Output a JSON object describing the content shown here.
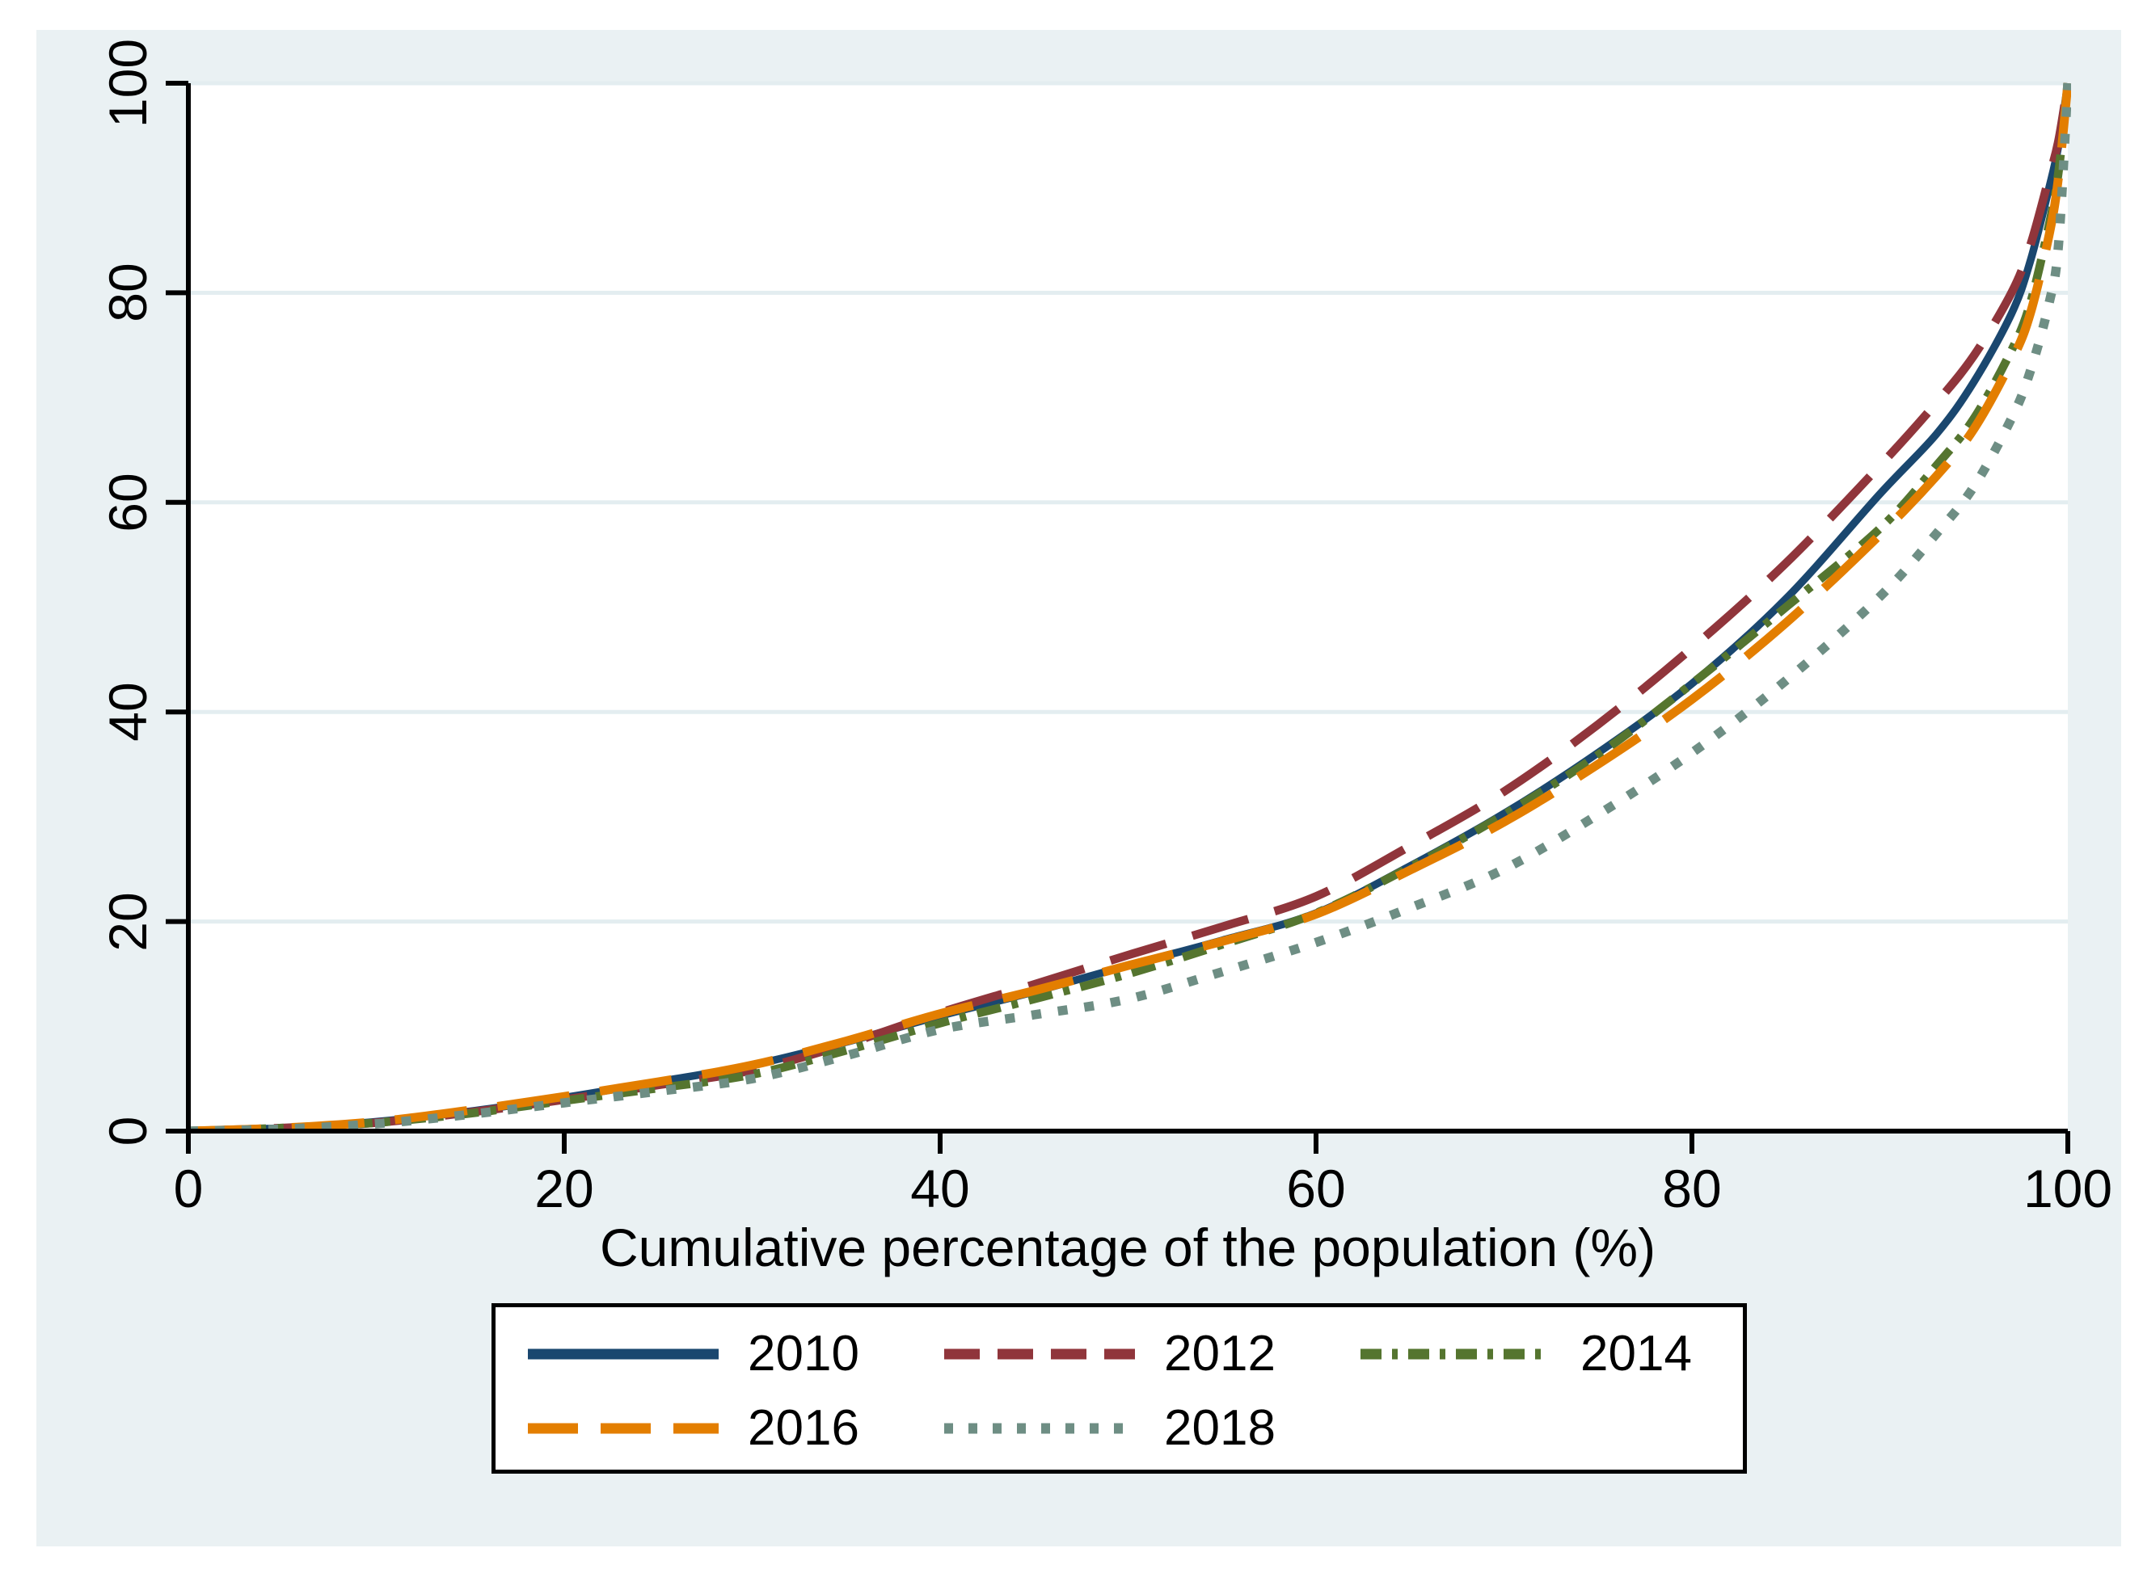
{
  "figure": {
    "canvas_color": "#eaf1f3",
    "plot_background": "#ffffff",
    "axis_color": "#000000"
  },
  "chart_data": {
    "type": "line",
    "title": "",
    "xlabel": "Cumulative percentage of the population (%)",
    "ylabel": "",
    "xlim": [
      0,
      100
    ],
    "ylim": [
      0,
      100
    ],
    "x_ticks": [
      0,
      20,
      40,
      60,
      80,
      100
    ],
    "y_ticks": [
      0,
      20,
      40,
      60,
      80,
      100
    ],
    "grid": "horizontal-only",
    "gridline_color": "#e3edf0",
    "legend_position": "below-plot",
    "x": [
      0,
      5,
      10,
      15,
      20,
      25,
      30,
      35,
      40,
      45,
      50,
      55,
      60,
      65,
      70,
      75,
      80,
      85,
      90,
      93,
      95,
      97,
      98,
      99,
      99.5,
      100
    ],
    "series": [
      {
        "name": "2010",
        "color": "#1a476f",
        "dash": "solid",
        "values": [
          0,
          0.3,
          0.9,
          1.9,
          3.2,
          4.7,
          6.3,
          8.5,
          11.0,
          13.3,
          15.8,
          18.2,
          20.8,
          25.3,
          30.3,
          36.1,
          42.7,
          50.8,
          60.8,
          66.5,
          71.5,
          78.0,
          83.0,
          90.0,
          94.0,
          100
        ]
      },
      {
        "name": "2012",
        "color": "#90353b",
        "dash": "dash",
        "values": [
          0,
          0.3,
          0.8,
          1.8,
          3.0,
          4.4,
          5.8,
          8.3,
          11.3,
          14.0,
          16.8,
          19.5,
          22.4,
          27.2,
          32.4,
          38.8,
          46.1,
          54.2,
          63.5,
          69.5,
          74.0,
          80.0,
          84.5,
          91.0,
          94.5,
          100
        ]
      },
      {
        "name": "2014",
        "color": "#55752f",
        "dash": "dash-dot",
        "values": [
          0,
          0.3,
          0.8,
          1.7,
          2.9,
          4.1,
          5.4,
          7.7,
          10.3,
          12.6,
          15.0,
          17.8,
          20.8,
          25.2,
          30.2,
          35.9,
          42.7,
          50.0,
          57.5,
          63.5,
          68.0,
          74.5,
          79.0,
          86.5,
          91.5,
          100
        ]
      },
      {
        "name": "2016",
        "color": "#e37e00",
        "dash": "long-dash",
        "values": [
          0,
          0.3,
          0.9,
          2.0,
          3.3,
          4.7,
          6.3,
          8.6,
          11.2,
          13.4,
          15.8,
          18.1,
          20.7,
          24.9,
          29.5,
          35.0,
          41.2,
          48.5,
          56.9,
          62.5,
          67.0,
          73.5,
          78.0,
          85.5,
          91.0,
          100
        ]
      },
      {
        "name": "2018",
        "color": "#6e8e84",
        "dash": "dot",
        "values": [
          0,
          0.2,
          0.7,
          1.6,
          2.7,
          3.8,
          5.0,
          7.2,
          9.7,
          11.1,
          12.6,
          15.2,
          18.0,
          21.3,
          25.0,
          30.2,
          36.1,
          43.0,
          51.0,
          57.0,
          61.5,
          68.0,
          72.5,
          79.0,
          84.5,
          100
        ]
      }
    ]
  }
}
